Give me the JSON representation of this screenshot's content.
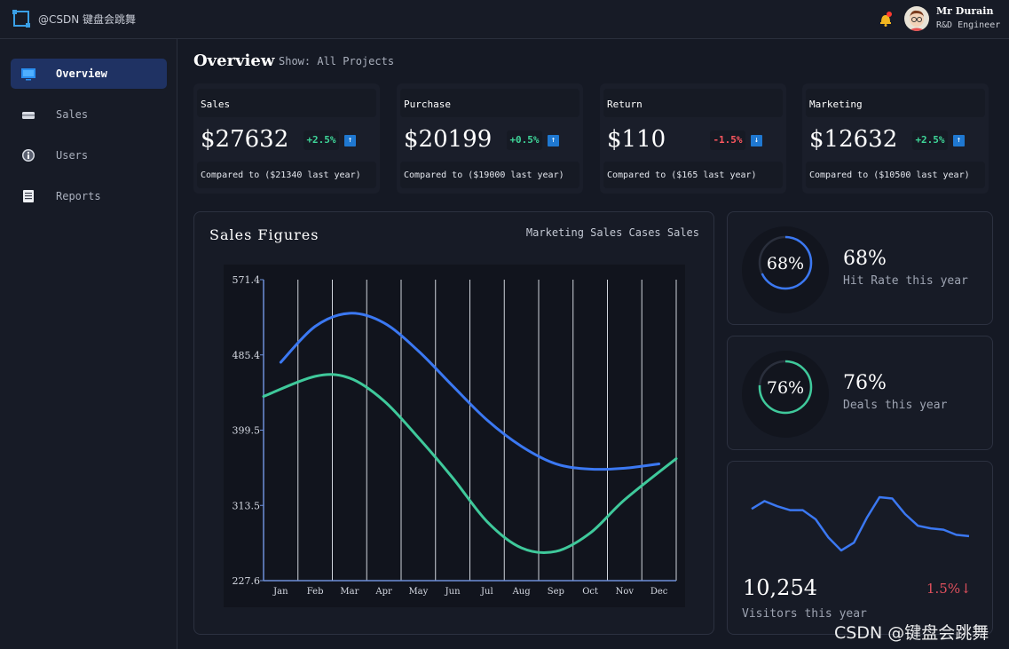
{
  "app": {
    "title": "@CSDN 键盘会跳舞"
  },
  "user": {
    "name": "Mr Durain",
    "role": "R&D Engineer"
  },
  "sidebar": {
    "items": [
      {
        "label": "Overview",
        "icon": "monitor-icon"
      },
      {
        "label": "Sales",
        "icon": "card-icon"
      },
      {
        "label": "Users",
        "icon": "info-icon"
      },
      {
        "label": "Reports",
        "icon": "document-icon"
      }
    ]
  },
  "page": {
    "title": "Overview",
    "show": "Show: All Projects"
  },
  "stats": [
    {
      "name": "Sales",
      "value": "$27632",
      "change": "+2.5%",
      "direction": "up",
      "compare": "Compared to ($21340 last year)"
    },
    {
      "name": "Purchase",
      "value": "$20199",
      "change": "+0.5%",
      "direction": "up",
      "compare": "Compared to ($19000 last year)"
    },
    {
      "name": "Return",
      "value": "$110",
      "change": "-1.5%",
      "direction": "down",
      "compare": "Compared to ($165 last year)"
    },
    {
      "name": "Marketing",
      "value": "$12632",
      "change": "+2.5%",
      "direction": "up",
      "compare": "Compared to ($10500 last year)"
    }
  ],
  "colors": {
    "positive": "#3ed598",
    "negative": "#ff575f",
    "blue_series": "#3b78f2",
    "green_series": "#3fc99b",
    "up_arrow": "#1f78d1"
  },
  "sales_panel": {
    "title": "Sales Figures",
    "legend": "Marketing Sales Cases Sales"
  },
  "chart_data": {
    "type": "line",
    "title": "Sales Figures",
    "categories": [
      "Jan",
      "Feb",
      "Mar",
      "Apr",
      "May",
      "Jun",
      "Jul",
      "Aug",
      "Sep",
      "Oct",
      "Nov",
      "Dec"
    ],
    "yticks": [
      "571.4",
      "485.4",
      "399.5",
      "313.5",
      "227.6"
    ],
    "ylim": [
      227.6,
      571.4
    ],
    "series": [
      {
        "name": "Marketing Sales",
        "color": "#3b78f2",
        "values": [
          477,
          518,
          533,
          522,
          490,
          450,
          411,
          381,
          361,
          355,
          356,
          361
        ]
      },
      {
        "name": "Cases Sales",
        "color": "#3fc99b",
        "values": [
          438,
          461,
          459,
          433,
          391,
          345,
          295,
          265,
          261,
          282,
          320,
          367
        ]
      }
    ]
  },
  "rings": [
    {
      "percent": 68,
      "value": "68%",
      "label": "Hit Rate this year",
      "color": "#3b78f2"
    },
    {
      "percent": 76,
      "value": "76%",
      "label": "Deals this year",
      "color": "#3fc99b"
    }
  ],
  "visitors": {
    "count": "10,254",
    "change": "1.5%↓",
    "label": "Visitors this year",
    "trend": [
      58,
      64,
      60,
      57,
      57,
      50,
      36,
      26,
      32,
      51,
      67,
      66,
      54,
      45,
      43,
      42,
      38,
      37
    ]
  },
  "watermark": "CSDN @键盘会跳舞"
}
